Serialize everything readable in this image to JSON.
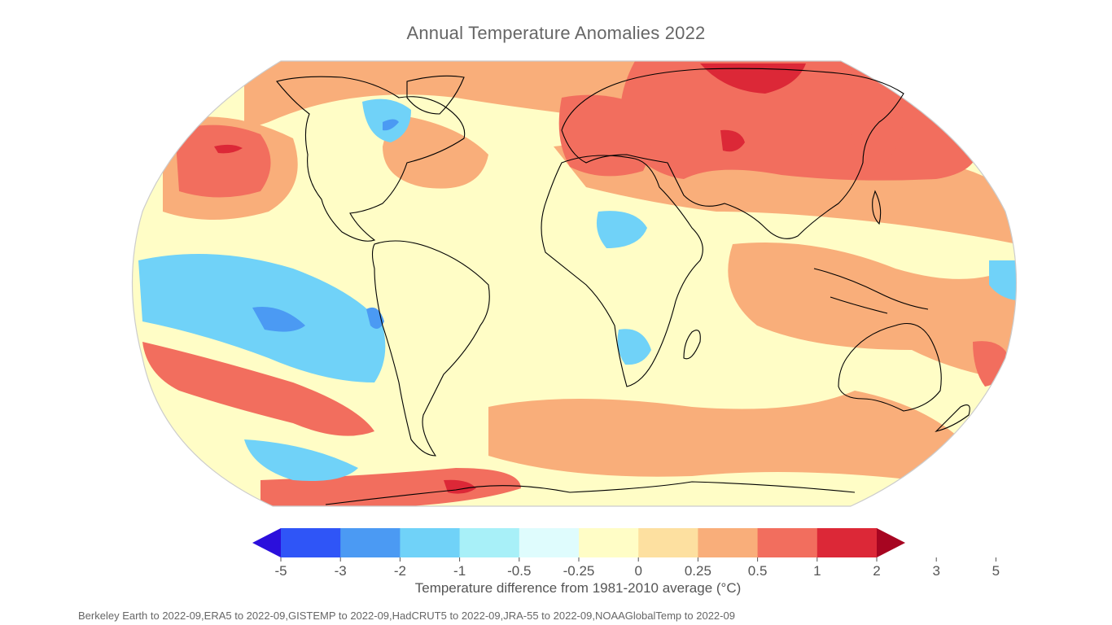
{
  "title": "Annual Temperature Anomalies 2022",
  "colorbar": {
    "label": "Temperature difference from 1981-2010 average (°C)",
    "ticks": [
      "-5",
      "-3",
      "-2",
      "-1",
      "-0.5",
      "-0.25",
      "0",
      "0.25",
      "0.5",
      "1",
      "2",
      "3",
      "5"
    ],
    "colors": [
      "#2b0fdc",
      "#2f55f7",
      "#4b9af3",
      "#70d2f8",
      "#a8f0f8",
      "#dffcfd",
      "#fffdc6",
      "#fde0a0",
      "#f9ae7a",
      "#f26e5e",
      "#dc2837",
      "#a70521"
    ],
    "extend": "both"
  },
  "source_note": "Berkeley Earth to 2022-09,ERA5 to 2022-09,GISTEMP to 2022-09,HadCRUT5 to 2022-09,JRA-55 to 2022-09,NOAAGlobalTemp to 2022-09",
  "map": {
    "projection": "robinson",
    "background_anomaly_color": "#fffdc6",
    "border_color": "#cccccc",
    "coastline_color": "#000000",
    "regions": [
      {
        "name": "arctic-warm",
        "color": "#f9ae7a"
      },
      {
        "name": "siberia-warm",
        "color": "#f26e5e"
      },
      {
        "name": "siberia-hot",
        "color": "#dc2837"
      },
      {
        "name": "europe-warm",
        "color": "#f26e5e"
      },
      {
        "name": "north-pacific-warm",
        "color": "#f26e5e"
      },
      {
        "name": "southern-ocean-warm",
        "color": "#f26e5e"
      },
      {
        "name": "tropical-pacific-cool",
        "color": "#70d2f8"
      },
      {
        "name": "tropical-pacific-cold",
        "color": "#4b9af3"
      },
      {
        "name": "hudson-bay-cool",
        "color": "#70d2f8"
      },
      {
        "name": "antarctic-peninsula-hot",
        "color": "#dc2837"
      }
    ]
  }
}
